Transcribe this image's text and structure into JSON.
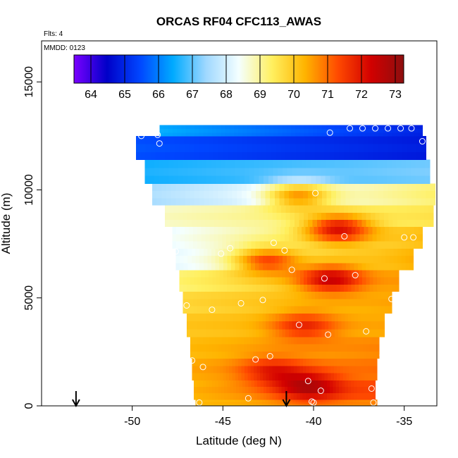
{
  "chart_data": {
    "type": "heatmap",
    "title": "ORCAS RF04 CFC113_AWAS",
    "notes": {
      "flights": "Flts: 4",
      "date": "MMDD: 0123"
    },
    "xlabel": "Latitude (deg N)",
    "ylabel": "Altitude (m)",
    "xlim": [
      -55,
      -33.2
    ],
    "ylim": [
      0,
      16900
    ],
    "x_ticks": [
      -50,
      -45,
      -40,
      -35
    ],
    "x_tick_labels": [
      "-50",
      "-45",
      "-40",
      "-35"
    ],
    "y_ticks": [
      0,
      5000,
      10000,
      15000
    ],
    "y_tick_labels": [
      "0",
      "5000",
      "10000",
      "15000"
    ],
    "colorbar": {
      "range": [
        63.5,
        73.25
      ],
      "ticks": [
        64,
        65,
        66,
        67,
        68,
        69,
        70,
        71,
        72,
        73
      ],
      "tick_labels": [
        "64",
        "65",
        "66",
        "67",
        "68",
        "69",
        "70",
        "71",
        "72",
        "73"
      ],
      "colors": [
        "#7a00ff",
        "#0000c8",
        "#0046ff",
        "#00aaff",
        "#9fd8ff",
        "#f4ffff",
        "#fff060",
        "#ffb400",
        "#ff4a00",
        "#d20000",
        "#8c0e0e"
      ]
    },
    "arrows": [
      -53.1,
      -41.5
    ],
    "profile_bands": [
      {
        "y0": 0,
        "y1": 300,
        "lat_left": -46.5,
        "lat_right": -36.5,
        "v_left": 70.3,
        "v_right": 70.8
      },
      {
        "y0": 300,
        "y1": 1200,
        "lat_left": -46.6,
        "lat_right": -36.6,
        "v_left": 70.4,
        "v_right": 71.4
      },
      {
        "y0": 1200,
        "y1": 2200,
        "lat_left": -46.7,
        "lat_right": -36.5,
        "v_left": 70.5,
        "v_right": 71.0
      },
      {
        "y0": 2200,
        "y1": 3200,
        "lat_left": -46.8,
        "lat_right": -36.4,
        "v_left": 70.3,
        "v_right": 70.8
      },
      {
        "y0": 3200,
        "y1": 4300,
        "lat_left": -47.0,
        "lat_right": -36.1,
        "v_left": 70.1,
        "v_right": 70.5
      },
      {
        "y0": 4300,
        "y1": 5300,
        "lat_left": -47.2,
        "lat_right": -35.7,
        "v_left": 69.8,
        "v_right": 70.5
      },
      {
        "y0": 5300,
        "y1": 6300,
        "lat_left": -47.4,
        "lat_right": -35.3,
        "v_left": 69.3,
        "v_right": 70.6
      },
      {
        "y0": 6300,
        "y1": 7300,
        "lat_left": -47.6,
        "lat_right": -34.5,
        "v_left": 68.3,
        "v_right": 70.4
      },
      {
        "y0": 7300,
        "y1": 8300,
        "lat_left": -47.8,
        "lat_right": -34.0,
        "v_left": 68.4,
        "v_right": 70.2
      },
      {
        "y0": 8300,
        "y1": 9300,
        "lat_left": -48.2,
        "lat_right": -33.4,
        "v_left": 68.8,
        "v_right": 69.6
      },
      {
        "y0": 9300,
        "y1": 10300,
        "lat_left": -48.9,
        "lat_right": -33.3,
        "v_left": 67.6,
        "v_right": 69.3
      },
      {
        "y0": 10300,
        "y1": 11400,
        "lat_left": -49.3,
        "lat_right": -33.6,
        "v_left": 66.6,
        "v_right": 67.2
      },
      {
        "y0": 11400,
        "y1": 12500,
        "lat_left": -49.8,
        "lat_right": -33.8,
        "v_left": 65.6,
        "v_right": 64.9
      },
      {
        "y0": 12500,
        "y1": 13000,
        "lat_left": -48.5,
        "lat_right": -34.0,
        "v_left": 66.5,
        "v_right": 65.0
      }
    ],
    "hotspots": [
      {
        "lat": -40.2,
        "alt": 900,
        "value": 72.8
      },
      {
        "lat": -42.2,
        "alt": 1600,
        "value": 72.0
      },
      {
        "lat": -39.0,
        "alt": 5900,
        "value": 72.4
      },
      {
        "lat": -40.5,
        "alt": 3700,
        "value": 71.8
      },
      {
        "lat": -38.6,
        "alt": 8200,
        "value": 72.2
      },
      {
        "lat": -42.5,
        "alt": 6700,
        "value": 71.4
      },
      {
        "lat": -40.8,
        "alt": 9700,
        "value": 70.6
      }
    ],
    "samples": [
      {
        "lat": -50.9,
        "alt": 12450
      },
      {
        "lat": -50.5,
        "alt": 12450
      },
      {
        "lat": -49.5,
        "alt": 12500
      },
      {
        "lat": -48.6,
        "alt": 12550
      },
      {
        "lat": -48.5,
        "alt": 12150
      },
      {
        "lat": -39.1,
        "alt": 12650
      },
      {
        "lat": -38.0,
        "alt": 12850
      },
      {
        "lat": -37.3,
        "alt": 12850
      },
      {
        "lat": -36.6,
        "alt": 12850
      },
      {
        "lat": -35.9,
        "alt": 12850
      },
      {
        "lat": -35.2,
        "alt": 12850
      },
      {
        "lat": -34.6,
        "alt": 12850
      },
      {
        "lat": -34.0,
        "alt": 12250
      },
      {
        "lat": -39.9,
        "alt": 9850
      },
      {
        "lat": -38.3,
        "alt": 7850
      },
      {
        "lat": -35.0,
        "alt": 7800
      },
      {
        "lat": -34.5,
        "alt": 7800
      },
      {
        "lat": -42.2,
        "alt": 7550
      },
      {
        "lat": -44.6,
        "alt": 7300
      },
      {
        "lat": -45.1,
        "alt": 7050
      },
      {
        "lat": -47.6,
        "alt": 7150
      },
      {
        "lat": -41.6,
        "alt": 7200
      },
      {
        "lat": -41.2,
        "alt": 6300
      },
      {
        "lat": -37.7,
        "alt": 6050
      },
      {
        "lat": -39.4,
        "alt": 5900
      },
      {
        "lat": -35.7,
        "alt": 4950
      },
      {
        "lat": -42.8,
        "alt": 4900
      },
      {
        "lat": -44.0,
        "alt": 4750
      },
      {
        "lat": -45.6,
        "alt": 4450
      },
      {
        "lat": -47.0,
        "alt": 4650
      },
      {
        "lat": -40.8,
        "alt": 3750
      },
      {
        "lat": -37.1,
        "alt": 3450
      },
      {
        "lat": -39.2,
        "alt": 3300
      },
      {
        "lat": -36.2,
        "alt": 2350
      },
      {
        "lat": -42.4,
        "alt": 2300
      },
      {
        "lat": -43.2,
        "alt": 2150
      },
      {
        "lat": -46.7,
        "alt": 2100
      },
      {
        "lat": -46.1,
        "alt": 1800
      },
      {
        "lat": -40.3,
        "alt": 1150
      },
      {
        "lat": -36.8,
        "alt": 800
      },
      {
        "lat": -39.6,
        "alt": 700
      },
      {
        "lat": -43.6,
        "alt": 350
      },
      {
        "lat": -40.1,
        "alt": 200
      },
      {
        "lat": -40.0,
        "alt": 150
      },
      {
        "lat": -46.3,
        "alt": 150
      },
      {
        "lat": -36.7,
        "alt": 150
      }
    ]
  }
}
